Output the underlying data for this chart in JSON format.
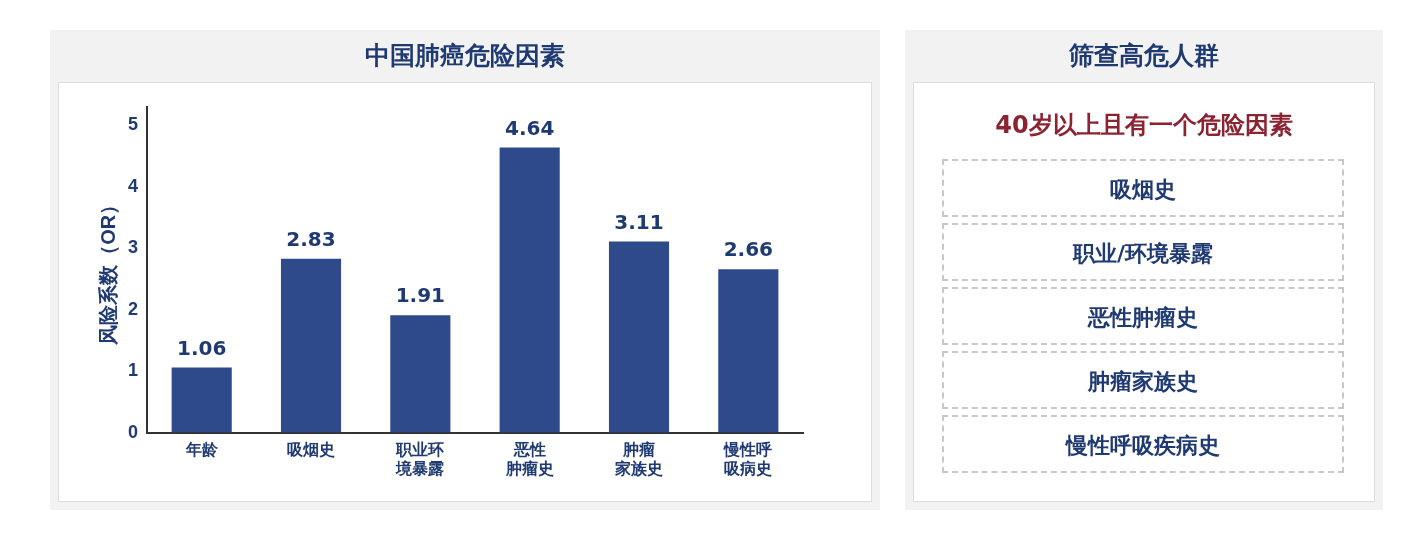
{
  "chart_data": [
    {
      "type": "bar",
      "title": "中国肺癌危险因素",
      "ylabel": "风险系数（OR）",
      "categories": [
        "年龄",
        "吸烟史",
        "职业环境暴露",
        "恶性肿瘤史",
        "肿瘤家族史",
        "慢性呼吸病史"
      ],
      "values": [
        1.06,
        2.83,
        1.91,
        4.64,
        3.11,
        2.66
      ],
      "color": "#2e4a8a",
      "ylim": [
        0,
        5.3
      ],
      "yticks": [
        0,
        1,
        2,
        3,
        4,
        5
      ],
      "data_labels": true,
      "grid": false
    },
    {
      "type": "other",
      "title": "筛查高危人群",
      "subtitle": "40岁以上且有一个危险因素",
      "annotations": [
        "吸烟史",
        "职业/环境暴露",
        "恶性肿瘤史",
        "肿瘤家族史",
        "慢性呼吸疾病史"
      ]
    }
  ]
}
